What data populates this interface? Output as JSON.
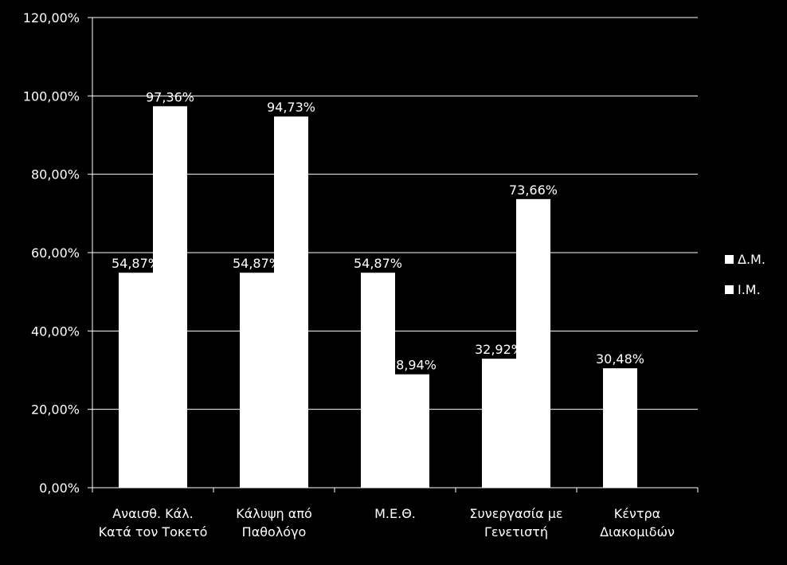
{
  "chart_data": {
    "type": "bar",
    "title": "",
    "xlabel": "",
    "ylabel": "",
    "categories": [
      [
        "Αναισθ. Κάλ.",
        "Κατά τον Τοκετό"
      ],
      [
        "Κάλυψη από",
        "Παθολόγο"
      ],
      [
        "Μ.Ε.Θ."
      ],
      [
        "Συνεργασία με",
        "Γενετιστή"
      ],
      [
        "Κέντρα",
        "Διακομιδών"
      ]
    ],
    "series": [
      {
        "name": "Δ.Μ.",
        "values": [
          54.87,
          54.87,
          54.87,
          32.92,
          30.48
        ],
        "labels": [
          "54,87%",
          "54,87%",
          "54,87%",
          "32,92%",
          "30,48%"
        ]
      },
      {
        "name": "Ι.Μ.",
        "values": [
          97.36,
          94.73,
          28.94,
          73.66,
          null
        ],
        "labels": [
          "97,36%",
          "94,73%",
          "28,94%",
          "73,66%",
          null
        ]
      }
    ],
    "ylim": [
      0,
      120
    ],
    "yticks": [
      0,
      20,
      40,
      60,
      80,
      100,
      120
    ],
    "ytick_labels": [
      "0,00%",
      "20,00%",
      "40,00%",
      "60,00%",
      "80,00%",
      "100,00%",
      "120,00%"
    ],
    "grid": true,
    "legend_position": "right",
    "colors": {
      "background": "#000000",
      "bar": "#ffffff",
      "text": "#ffffff",
      "grid": "#ffffff",
      "axis": "#ffffff"
    }
  }
}
